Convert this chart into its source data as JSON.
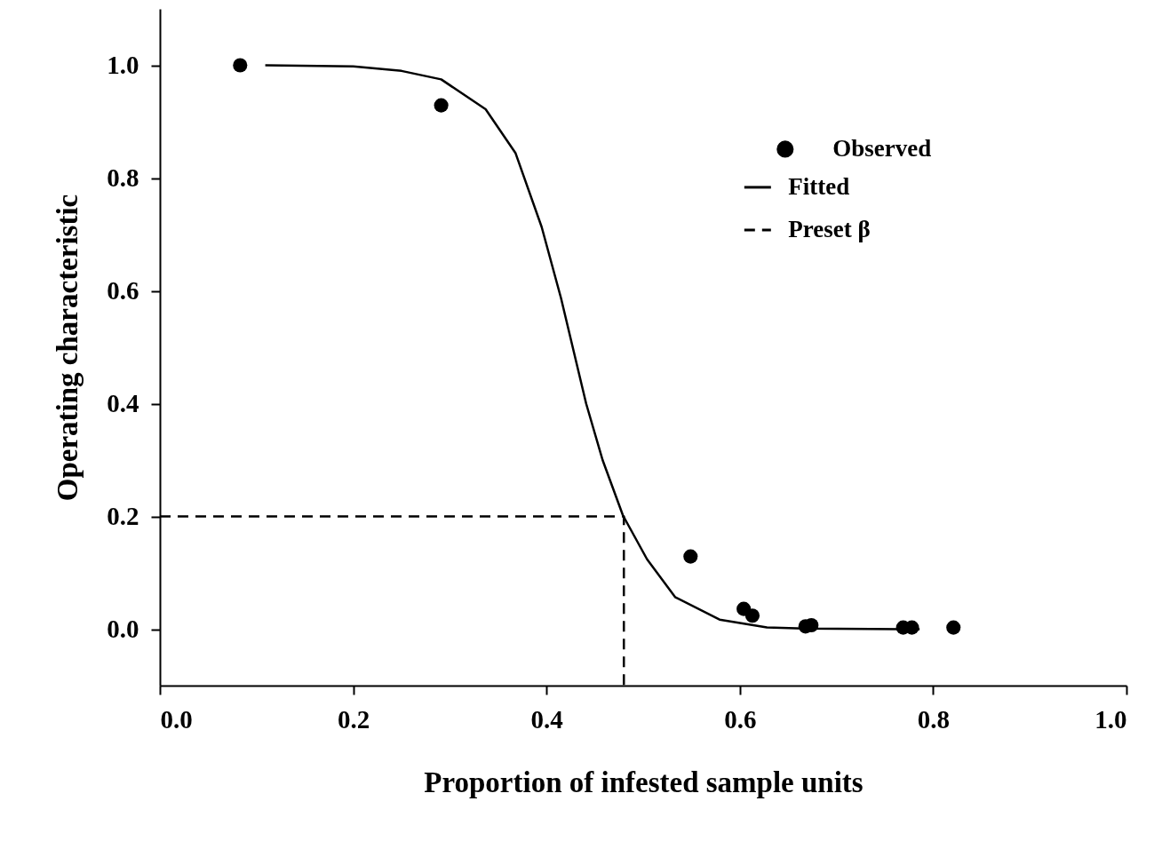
{
  "chart_data": {
    "type": "scatter",
    "xlabel": "Proportion of infested sample units",
    "ylabel": "Operating characteristic",
    "xlim": [
      0,
      1
    ],
    "ylim": [
      -0.1,
      1.1
    ],
    "xticks": [
      {
        "value": 0,
        "label": "0.0"
      },
      0.2,
      0.4,
      0.6,
      0.8,
      {
        "value": 1,
        "label": "1.0"
      }
    ],
    "yticks": [
      {
        "value": 0,
        "label": "0.0"
      },
      0.2,
      0.4,
      0.6,
      0.8,
      {
        "value": 1,
        "label": "1.0"
      }
    ],
    "grid": false,
    "legend": "top right",
    "series": [
      {
        "name": "Observed",
        "marker": "circle",
        "color": "#000000",
        "x": [
          0.083,
          0.291,
          0.549,
          0.604,
          0.613,
          0.668,
          0.674,
          0.769,
          0.778,
          0.821
        ],
        "values": [
          1.0,
          0.929,
          0.129,
          0.036,
          0.024,
          0.005,
          0.007,
          0.003,
          0.003,
          0.003
        ]
      },
      {
        "name": "Fitted",
        "type": "line",
        "line_style": "solid",
        "color": "#000000",
        "x": [
          0.109,
          0.2,
          0.25,
          0.291,
          0.337,
          0.368,
          0.395,
          0.415,
          0.441,
          0.458,
          0.479,
          0.504,
          0.533,
          0.579,
          0.628,
          0.666,
          0.786
        ],
        "values": [
          1.0,
          0.998,
          0.99,
          0.975,
          0.922,
          0.844,
          0.713,
          0.587,
          0.4,
          0.3,
          0.202,
          0.124,
          0.057,
          0.017,
          0.003,
          0.001,
          0.0
        ]
      },
      {
        "name": "Preset β",
        "type": "line",
        "line_style": "dashed",
        "color": "#000000",
        "x": [
          0,
          0.48,
          0.48
        ],
        "values": [
          0.2,
          0.2,
          -0.1
        ]
      }
    ]
  }
}
